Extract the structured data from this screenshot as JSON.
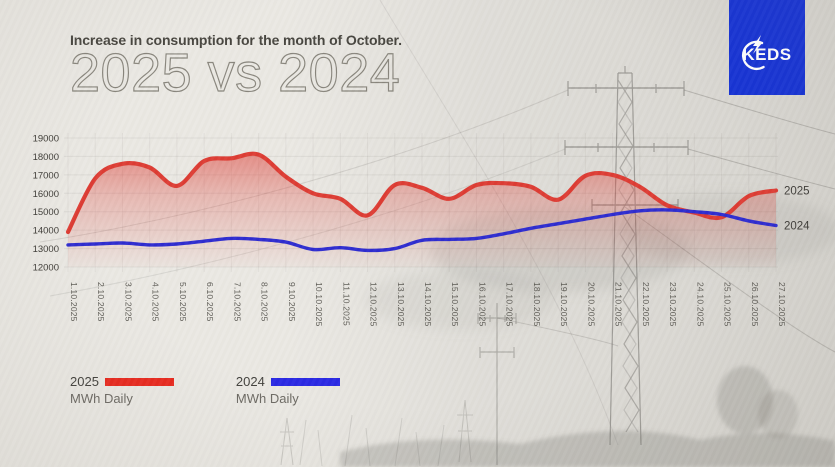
{
  "header": {
    "subtitle": "Increase in consumption for the month of October.",
    "title": "2025 vs 2024"
  },
  "logo": {
    "text": "KEDS",
    "bg_color": "#1330d4"
  },
  "chart_data": {
    "type": "line",
    "title": "Increase in consumption for the month of October. 2025 vs 2024",
    "ylabel": "MWh Daily",
    "ylim": [
      12000,
      19000
    ],
    "ytick_step": 1000,
    "yticks": [
      19000,
      18000,
      17000,
      16000,
      15000,
      14000,
      13000,
      12000
    ],
    "grid": true,
    "legend_position": "bottom-left",
    "categories": [
      "1.10.2025",
      "2.10.2025",
      "3.10.2025",
      "4.10.2025",
      "5.10.2025",
      "6.10.2025",
      "7.10.2025",
      "8.10.2025",
      "9.10.2025",
      "10.10.2025",
      "11.10.2025",
      "12.10.2025",
      "13.10.2025",
      "14.10.2025",
      "15.10.2025",
      "16.10.2025",
      "17.10.2025",
      "18.10.2025",
      "19.10.2025",
      "20.10.2025",
      "21.10.2025",
      "22.10.2025",
      "23.10.2025",
      "24.10.2025",
      "25.10.2025",
      "26.10.2025",
      "27.10.2025"
    ],
    "series": [
      {
        "name": "2025",
        "unit": "MWh Daily",
        "color": "#dd3a31",
        "fill": "area-gradient",
        "values": [
          13900,
          16800,
          17600,
          17400,
          16400,
          17750,
          17900,
          18100,
          16900,
          16000,
          15700,
          14800,
          16450,
          16300,
          15700,
          16450,
          16550,
          16350,
          15650,
          16950,
          17000,
          16350,
          15350,
          14950,
          14700,
          15850,
          16150
        ]
      },
      {
        "name": "2024",
        "unit": "MWh Daily",
        "color": "#2b29cf",
        "fill": "none",
        "values": [
          13200,
          13250,
          13300,
          13200,
          13250,
          13400,
          13550,
          13500,
          13350,
          12950,
          13050,
          12900,
          13000,
          13450,
          13500,
          13550,
          13800,
          14100,
          14350,
          14600,
          14850,
          15050,
          15100,
          15000,
          14850,
          14500,
          14250
        ]
      }
    ],
    "right_line_labels": [
      "2025",
      "2024"
    ]
  },
  "legend": {
    "items": [
      {
        "year": "2025",
        "unit": "MWh Daily",
        "swatch_color": "#e8271c"
      },
      {
        "year": "2024",
        "unit": "MWh Daily",
        "swatch_color": "#2726e3"
      }
    ]
  },
  "colors": {
    "background": "#eae8e3",
    "series_2025": "#dd3a31",
    "series_2024": "#2b29cf",
    "logo_blue": "#1330d4"
  }
}
